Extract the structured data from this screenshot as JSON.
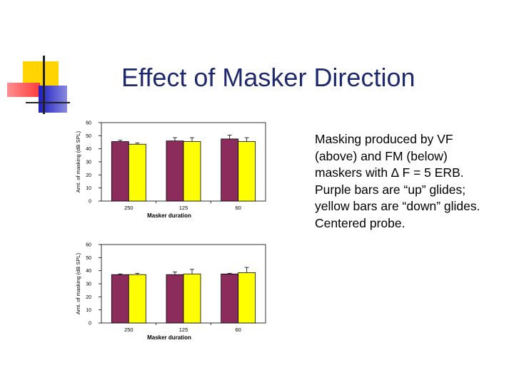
{
  "slide": {
    "title": "Effect of Masker Direction",
    "description_lines": [
      "Masking produced by VF",
      "(above) and FM (below)",
      "maskers with ∆ F = 5 ERB.",
      "Purple bars are “up” glides;",
      "yellow bars are “down” glides.",
      "Centered probe."
    ]
  },
  "colors": {
    "title": "#1f2a6e",
    "up_bar": "#8b2c5c",
    "down_bar": "#ffff00",
    "deco_yellow": "#ffd400",
    "deco_red": "#ff5a5a",
    "deco_blue": "#1c1cc0"
  },
  "chart_data": [
    {
      "type": "bar",
      "categories": [
        "250",
        "125",
        "60"
      ],
      "xlabel": "Masker duration",
      "ylabel": "Amt. of masking (dB SPL)",
      "ylim": [
        0,
        60
      ],
      "yticks": [
        "0",
        "10",
        "20",
        "30",
        "40",
        "50",
        "60"
      ],
      "grid": false,
      "series": [
        {
          "values": [
            45.5,
            46,
            47.5
          ],
          "errors": [
            1,
            2.5,
            3
          ],
          "color": "#8b2c5c"
        },
        {
          "values": [
            43.5,
            45.5,
            45.5
          ],
          "errors": [
            1,
            3,
            3
          ],
          "color": "#ffff00"
        }
      ]
    },
    {
      "type": "bar",
      "categories": [
        "250",
        "125",
        "60"
      ],
      "xlabel": "Masker duration",
      "ylabel": "Amt. of masking (dB SPL)",
      "ylim": [
        0,
        60
      ],
      "yticks": [
        "0",
        "10",
        "20",
        "30",
        "40",
        "50",
        "60"
      ],
      "grid": false,
      "series": [
        {
          "values": [
            37,
            37,
            37.5
          ],
          "errors": [
            0.5,
            2,
            0.5
          ],
          "color": "#8b2c5c"
        },
        {
          "values": [
            37,
            37.5,
            38.5
          ],
          "errors": [
            1,
            3.5,
            4
          ],
          "color": "#ffff00"
        }
      ]
    }
  ]
}
